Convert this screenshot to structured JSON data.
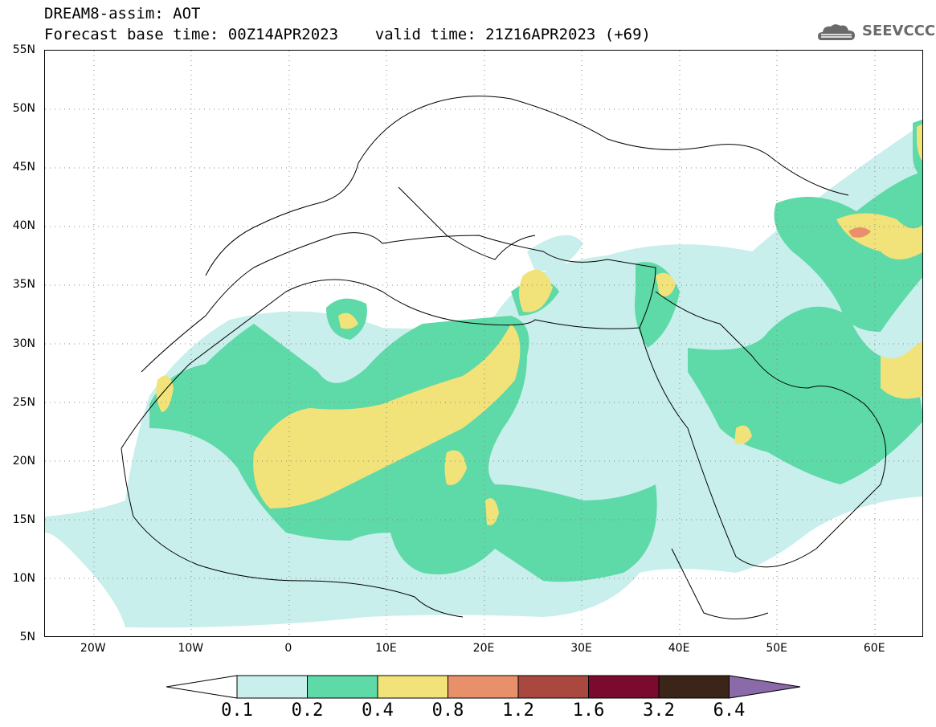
{
  "header": {
    "title_line1": "DREAM8-assim: AOT",
    "title_line2": "Forecast base time: 00Z14APR2023    valid time: 21Z16APR2023 (+69)"
  },
  "logo": {
    "text": "SEEVCCC",
    "icon": "cloud-logo-icon",
    "color": "#6a6a6a"
  },
  "map": {
    "lon_range": [
      -25,
      65
    ],
    "lat_range": [
      5,
      55
    ],
    "x_ticks": [
      "20W",
      "10W",
      "0",
      "10E",
      "20E",
      "30E",
      "40E",
      "50E",
      "60E"
    ],
    "y_ticks": [
      "55N",
      "50N",
      "45N",
      "40N",
      "35N",
      "30N",
      "25N",
      "20N",
      "15N",
      "10N",
      "5N"
    ],
    "grid": "dotted"
  },
  "colorbar": {
    "levels": [
      "0.1",
      "0.2",
      "0.4",
      "0.8",
      "1.2",
      "1.6",
      "3.2",
      "6.4"
    ],
    "colors": [
      "#c8efeb",
      "#5ed9a8",
      "#f2e27a",
      "#e8906a",
      "#a9483e",
      "#7a0a2e",
      "#3b2418",
      "#8a6aa8"
    ],
    "under_color": "#ffffff"
  }
}
